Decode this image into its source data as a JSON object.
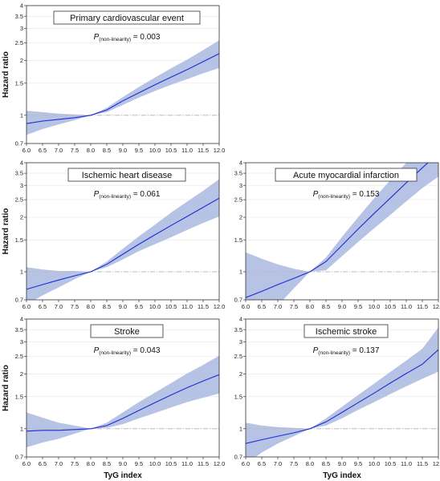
{
  "colors": {
    "band": "#aab8e0",
    "curve": "#1b2bd6",
    "ref": "#bbbbbb",
    "axis": "#333333"
  },
  "common": {
    "xlabel": "TyG index",
    "ylabel": "Hazard ratio",
    "xticks": [
      "6.0",
      "6.5",
      "7.0",
      "7.5",
      "8.0",
      "8.5",
      "9.0",
      "9.5",
      "10.0",
      "10.5",
      "11.0",
      "11.5",
      "12.0"
    ],
    "yticks": [
      "0.7",
      "1",
      "1.5",
      "2",
      "2.5",
      "3",
      "3.5",
      "4"
    ],
    "p_prefix": "P",
    "p_sub": "(non-linearity)"
  },
  "chart_data": [
    {
      "type": "line",
      "title": "Primary cardiovascular event",
      "p_value": "= 0.003",
      "xlim": [
        6.0,
        12.0
      ],
      "ylim": [
        0.7,
        4
      ],
      "yscale": "log",
      "reference_y": 1,
      "series": [
        {
          "values_x": [
            6.0,
            6.5,
            7.0,
            7.5,
            8.0,
            8.5,
            9.0,
            9.5,
            10.0,
            10.5,
            11.0,
            11.5,
            12.0
          ],
          "hr": [
            0.9,
            0.93,
            0.95,
            0.97,
            1.0,
            1.07,
            1.2,
            1.33,
            1.47,
            1.62,
            1.78,
            1.97,
            2.18
          ],
          "lower": [
            0.78,
            0.84,
            0.89,
            0.94,
            1.0,
            1.04,
            1.14,
            1.25,
            1.36,
            1.47,
            1.58,
            1.7,
            1.82
          ],
          "upper": [
            1.06,
            1.04,
            1.02,
            1.01,
            1.0,
            1.1,
            1.26,
            1.43,
            1.61,
            1.81,
            2.02,
            2.28,
            2.58
          ]
        }
      ]
    },
    {
      "type": "line",
      "title": "Ischemic heart disease",
      "p_value": "= 0.061",
      "xlim": [
        6.0,
        12.0
      ],
      "ylim": [
        0.7,
        4
      ],
      "yscale": "log",
      "reference_y": 1,
      "series": [
        {
          "values_x": [
            6.0,
            6.5,
            7.0,
            7.5,
            8.0,
            8.5,
            9.0,
            9.5,
            10.0,
            10.5,
            11.0,
            11.5,
            12.0
          ],
          "hr": [
            0.8,
            0.85,
            0.9,
            0.95,
            1.0,
            1.1,
            1.25,
            1.42,
            1.6,
            1.8,
            2.02,
            2.27,
            2.55
          ],
          "lower": [
            0.66,
            0.74,
            0.82,
            0.91,
            1.0,
            1.06,
            1.17,
            1.3,
            1.42,
            1.55,
            1.7,
            1.86,
            2.02
          ],
          "upper": [
            1.06,
            1.03,
            1.01,
            1.01,
            1.0,
            1.14,
            1.34,
            1.57,
            1.82,
            2.12,
            2.44,
            2.8,
            3.25
          ]
        }
      ]
    },
    {
      "type": "line",
      "title": "Acute myocardial infarction",
      "p_value": "= 0.153",
      "xlim": [
        6.0,
        12.0
      ],
      "ylim": [
        0.7,
        4
      ],
      "yscale": "log",
      "reference_y": 1,
      "series": [
        {
          "values_x": [
            6.0,
            6.5,
            7.0,
            7.5,
            8.0,
            8.5,
            9.0,
            9.5,
            10.0,
            10.5,
            11.0,
            11.5,
            12.0
          ],
          "hr": [
            0.72,
            0.78,
            0.85,
            0.92,
            1.0,
            1.14,
            1.4,
            1.72,
            2.1,
            2.55,
            3.1,
            3.75,
            4.5
          ],
          "lower": [
            0.4,
            0.52,
            0.65,
            0.81,
            1.0,
            1.02,
            1.22,
            1.46,
            1.74,
            2.06,
            2.45,
            2.9,
            3.35
          ],
          "upper": [
            1.28,
            1.18,
            1.1,
            1.04,
            1.0,
            1.2,
            1.56,
            2.0,
            2.55,
            3.2,
            4.0,
            4.9,
            6.0
          ]
        }
      ]
    },
    {
      "type": "line",
      "title": "Stroke",
      "p_value": "= 0.043",
      "xlim": [
        6.0,
        12.0
      ],
      "ylim": [
        0.7,
        4
      ],
      "yscale": "log",
      "reference_y": 1,
      "series": [
        {
          "values_x": [
            6.0,
            6.5,
            7.0,
            7.5,
            8.0,
            8.5,
            9.0,
            9.5,
            10.0,
            10.5,
            11.0,
            11.5,
            12.0
          ],
          "hr": [
            0.97,
            0.98,
            0.98,
            0.99,
            1.0,
            1.04,
            1.14,
            1.26,
            1.39,
            1.53,
            1.68,
            1.83,
            1.98
          ],
          "lower": [
            0.79,
            0.84,
            0.88,
            0.94,
            1.0,
            1.01,
            1.06,
            1.14,
            1.22,
            1.31,
            1.4,
            1.48,
            1.56
          ],
          "upper": [
            1.23,
            1.15,
            1.08,
            1.04,
            1.0,
            1.08,
            1.23,
            1.4,
            1.58,
            1.78,
            2.01,
            2.24,
            2.52
          ]
        }
      ]
    },
    {
      "type": "line",
      "title": "Ischemic stroke",
      "p_value": "= 0.137",
      "xlim": [
        6.0,
        12.0
      ],
      "ylim": [
        0.7,
        4
      ],
      "yscale": "log",
      "reference_y": 1,
      "series": [
        {
          "values_x": [
            6.0,
            6.5,
            7.0,
            7.5,
            8.0,
            8.5,
            9.0,
            9.5,
            10.0,
            10.5,
            11.0,
            11.5,
            12.0
          ],
          "hr": [
            0.83,
            0.87,
            0.91,
            0.95,
            1.0,
            1.09,
            1.23,
            1.39,
            1.57,
            1.78,
            2.01,
            2.26,
            2.72
          ],
          "lower": [
            0.64,
            0.74,
            0.83,
            0.91,
            1.0,
            1.04,
            1.14,
            1.27,
            1.4,
            1.55,
            1.71,
            1.88,
            2.06
          ],
          "upper": [
            1.08,
            1.04,
            1.02,
            1.01,
            1.0,
            1.14,
            1.32,
            1.53,
            1.77,
            2.05,
            2.37,
            2.75,
            3.6
          ]
        }
      ]
    }
  ]
}
